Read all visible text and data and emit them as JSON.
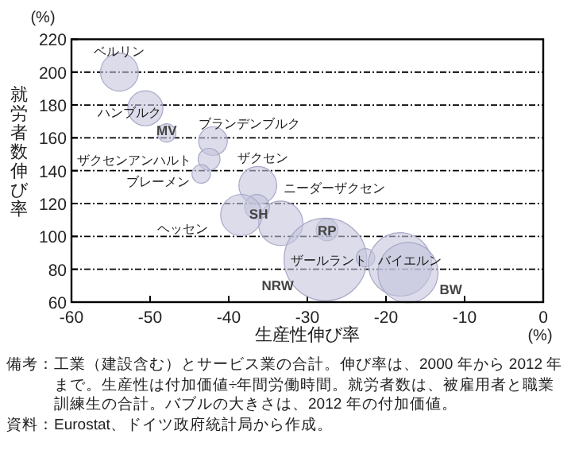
{
  "chart_data": {
    "type": "bubble",
    "ylabel": "就労者数伸び率",
    "xlabel": "生産性伸び率",
    "x": [
      -53.9,
      -50.6,
      -47.9,
      -42,
      -42.5,
      -43.5,
      -36.3,
      -33.4,
      -36.4,
      -38.4,
      -27.5,
      -27.7,
      -22.6,
      -18.2,
      -17.2
    ],
    "series": [
      {
        "color": "#c4c4dc",
        "values": [
          200,
          178,
          163,
          158,
          147,
          138,
          131,
          108,
          118,
          113,
          104,
          86,
          87,
          83,
          78
        ],
        "sizes": [
          0.21,
          0.18,
          0.05,
          0.12,
          0.07,
          0.05,
          0.21,
          0.29,
          0.09,
          0.25,
          0.07,
          1,
          0.05,
          0.59,
          0.53
        ]
      }
    ],
    "xlim": [
      -60,
      0
    ],
    "xticks": [
      -60,
      -50,
      -40,
      -30,
      -20,
      -10,
      0
    ],
    "ylim": [
      60,
      220
    ],
    "yticks": [
      60,
      80,
      100,
      120,
      140,
      160,
      180,
      200,
      220
    ],
    "grid": "y",
    "annotations": [
      {
        "text": "ベルリン",
        "x": -53.9,
        "y": 200
      },
      {
        "text": "ハンブルク",
        "x": -50.6,
        "y": 178
      },
      {
        "text": "MV",
        "x": -47.9,
        "y": 163
      },
      {
        "text": "ブランデンブルク",
        "x": -42,
        "y": 158
      },
      {
        "text": "ザクセンアンハルト",
        "x": -42.5,
        "y": 147
      },
      {
        "text": "ブレーメン",
        "x": -43.5,
        "y": 138
      },
      {
        "text": "ザクセン",
        "x": -36.3,
        "y": 131
      },
      {
        "text": "ニーダーザクセン",
        "x": -33.4,
        "y": 108
      },
      {
        "text": "SH",
        "x": -36.4,
        "y": 118
      },
      {
        "text": "ヘッセン",
        "x": -38.4,
        "y": 113
      },
      {
        "text": "RP",
        "x": -27.5,
        "y": 104
      },
      {
        "text": "NRW",
        "x": -27.7,
        "y": 86
      },
      {
        "text": "ザールラント",
        "x": -22.6,
        "y": 87
      },
      {
        "text": "バイエルン",
        "x": -18.2,
        "y": 83
      },
      {
        "text": "BW",
        "x": -17.2,
        "y": 78
      },
      "(%)",
      "(%)",
      "備考：工業（建設含む）とサービス業の合計。伸び率は、2000 年から 2012 年まで。生産性は付加価値÷年間労働時間。就労者数は、被雇用者と職業訓練生の合計。バブルの大きさは、2012 年の付加価値。",
      "資料：Eurostat、ドイツ政府統計局から作成。"
    ]
  }
}
